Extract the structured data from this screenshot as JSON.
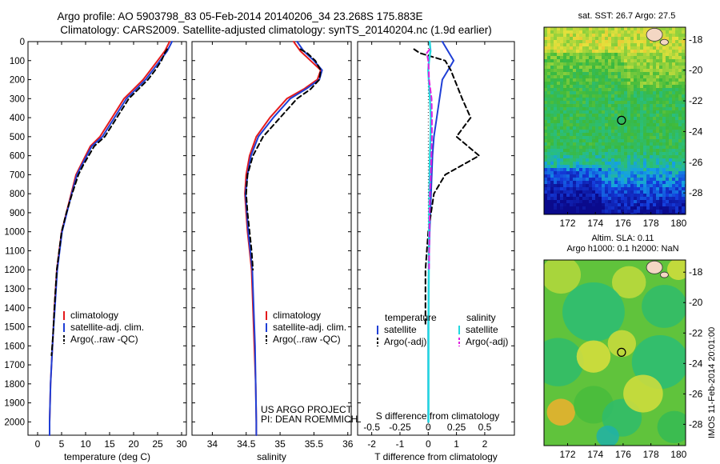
{
  "header": {
    "line1": "Argo profile: AO 5903798_83 05-Feb-2014 20140206_34 23.268S 175.883E",
    "line2": "Climatology: CARS2009. Satellite-adjusted climatology: synTS_20140204.nc (1.9d earlier)"
  },
  "side_label": "IMOS 11-Feb-2014 20:01:00",
  "colors": {
    "climatology": "#e41a1c",
    "satellite": "#1f3fd6",
    "argo": "#000000",
    "sal_satellite": "#22d8e0",
    "sal_argo": "#e020e0"
  },
  "chart_data": [
    {
      "type": "line",
      "xlabel": "temperature (deg C)",
      "xticks": [
        0,
        5,
        10,
        15,
        20,
        25,
        30
      ],
      "xlim": [
        -2,
        31
      ],
      "ylim": [
        2070,
        0
      ],
      "yticks": [
        0,
        100,
        200,
        300,
        400,
        500,
        600,
        700,
        800,
        900,
        1000,
        1100,
        1200,
        1300,
        1400,
        1500,
        1600,
        1700,
        1800,
        1900,
        2000
      ],
      "legend": [
        "climatology",
        "satellite-adj. clim.",
        "Argo(..raw -QC)"
      ],
      "series": [
        {
          "name": "climatology",
          "x": [
            27.5,
            26.5,
            25,
            23.5,
            22,
            20,
            18,
            15.5,
            13,
            11,
            9,
            8,
            7,
            6,
            5,
            4.5,
            4,
            3.5,
            3.2,
            2.9,
            2.7,
            2.6,
            2.5,
            2.5
          ],
          "y": [
            0,
            50,
            100,
            150,
            200,
            250,
            300,
            400,
            500,
            550,
            650,
            700,
            800,
            900,
            1000,
            1100,
            1200,
            1400,
            1550,
            1700,
            1800,
            1900,
            2000,
            2070
          ]
        },
        {
          "name": "satellite-adj. clim.",
          "x": [
            28,
            27,
            25.5,
            24,
            22.5,
            20.5,
            18.5,
            16,
            13.5,
            11.3,
            9.2,
            8.2,
            7.1,
            6.1,
            5.1,
            4.6,
            4.1,
            3.6,
            3.2,
            2.9,
            2.7,
            2.6,
            2.5,
            2.5
          ],
          "y": [
            0,
            50,
            100,
            150,
            200,
            250,
            300,
            400,
            500,
            550,
            650,
            700,
            800,
            900,
            1000,
            1100,
            1200,
            1400,
            1550,
            1700,
            1800,
            1900,
            2000,
            2070
          ]
        },
        {
          "name": "Argo(..raw -QC)",
          "x": [
            27,
            26.5,
            25.8,
            24.5,
            23,
            21,
            19,
            16.5,
            14,
            11.8,
            9.5,
            8.5,
            7.2,
            6,
            5,
            4.5,
            4,
            3.5,
            3.2,
            2.9
          ],
          "y": [
            40,
            60,
            100,
            150,
            200,
            250,
            300,
            400,
            500,
            550,
            650,
            700,
            800,
            900,
            1000,
            1100,
            1200,
            1400,
            1550,
            1650
          ]
        }
      ]
    },
    {
      "type": "line",
      "xlabel": "salinity",
      "xticks": [
        34,
        34.5,
        35,
        35.5,
        36
      ],
      "xlim": [
        33.7,
        36.05
      ],
      "ylim": [
        2070,
        0
      ],
      "legend": [
        "climatology",
        "satellite-adj. clim.",
        "Argo(..raw -QC)"
      ],
      "series": [
        {
          "name": "climatology",
          "x": [
            35.2,
            35.3,
            35.45,
            35.6,
            35.55,
            35.35,
            35.1,
            34.85,
            34.65,
            34.55,
            34.5,
            34.48,
            34.5,
            34.52,
            34.55,
            34.58,
            34.6,
            34.62,
            34.64,
            34.65,
            34.65
          ],
          "y": [
            0,
            50,
            100,
            150,
            200,
            250,
            300,
            400,
            500,
            600,
            700,
            800,
            900,
            1000,
            1100,
            1200,
            1400,
            1600,
            1800,
            2000,
            2070
          ]
        },
        {
          "name": "satellite-adj. clim.",
          "x": [
            35.25,
            35.35,
            35.5,
            35.62,
            35.58,
            35.38,
            35.15,
            34.9,
            34.68,
            34.57,
            34.52,
            34.49,
            34.51,
            34.53,
            34.56,
            34.59,
            34.61,
            34.63,
            34.64,
            34.65,
            34.65
          ],
          "y": [
            0,
            50,
            100,
            150,
            200,
            250,
            300,
            400,
            500,
            600,
            700,
            800,
            900,
            1000,
            1100,
            1200,
            1400,
            1600,
            1800,
            2000,
            2070
          ]
        },
        {
          "name": "Argo(..raw -QC)",
          "x": [
            35.3,
            35.4,
            35.52,
            35.6,
            35.58,
            35.45,
            35.25,
            35,
            34.75,
            34.6,
            34.52,
            34.5,
            34.52,
            34.55,
            34.58,
            34.6
          ],
          "y": [
            40,
            60,
            100,
            150,
            200,
            250,
            300,
            400,
            500,
            600,
            700,
            800,
            900,
            1000,
            1100,
            1200
          ]
        }
      ]
    },
    {
      "type": "line",
      "xlabel": "T difference from climatology",
      "xlabel_top": "S difference from climatology",
      "xticks": [
        -2,
        -1,
        0,
        1,
        2
      ],
      "xticks_top": [
        "-0.5",
        "-0.25",
        "0",
        "0.25",
        "0.5"
      ],
      "xlim": [
        -2.5,
        3.05
      ],
      "ylim": [
        2070,
        0
      ],
      "legend_left_title": "temperature",
      "legend_right_title": "salinity",
      "legend_left": [
        "satellite",
        "Argo(-adj)"
      ],
      "legend_right": [
        "satellite",
        "Argo(-adj)"
      ],
      "series": [
        {
          "name": "satellite",
          "group": "temperature",
          "x": [
            0.5,
            0.7,
            0.9,
            0.7,
            0.5,
            0.4,
            0.3,
            0.2,
            0.15,
            0.1,
            0.05,
            0.02,
            0,
            0
          ],
          "y": [
            0,
            50,
            100,
            150,
            200,
            300,
            400,
            500,
            600,
            800,
            1000,
            1200,
            1500,
            2000
          ]
        },
        {
          "name": "Argo(-adj)",
          "group": "temperature",
          "x": [
            -0.5,
            -0.3,
            0.6,
            0.8,
            1.2,
            1.5,
            1.0,
            1.8,
            1.2,
            0.6,
            0.2,
            0,
            -0.1,
            -0.1
          ],
          "y": [
            40,
            60,
            100,
            150,
            300,
            400,
            500,
            600,
            650,
            700,
            800,
            1000,
            1200,
            1500
          ]
        },
        {
          "name": "satellite",
          "group": "salinity",
          "x": [
            0.05,
            0.08,
            0.03,
            0,
            0.02,
            0.06,
            0.09,
            0.08,
            0.06,
            0.05,
            0.04,
            0.03,
            0.02,
            0.01,
            0.01
          ],
          "y": [
            0,
            50,
            100,
            150,
            200,
            300,
            400,
            500,
            600,
            700,
            800,
            1000,
            1200,
            1500,
            2000
          ]
        },
        {
          "name": "Argo(-adj)",
          "group": "salinity",
          "x": [
            0.05,
            -0.05,
            0,
            0.02,
            0.03,
            0.12,
            0.13,
            0.13,
            0.11,
            0.09,
            0.06,
            0.04,
            0.03
          ],
          "y": [
            40,
            60,
            100,
            150,
            200,
            300,
            400,
            500,
            600,
            700,
            800,
            1000,
            1200
          ]
        }
      ],
      "annotation": [
        "US ARGO PROJECT",
        "PI: DEAN ROEMMICH"
      ]
    },
    {
      "type": "heatmap",
      "title": "sat. SST: 26.7 Argo: 27.5",
      "xticks": [
        "172",
        "174",
        "176",
        "178",
        "180"
      ],
      "yticks": [
        "-18",
        "-20",
        "-22",
        "-24",
        "-26",
        "-28"
      ],
      "marker": {
        "lon": 175.883,
        "lat": -23.268
      }
    },
    {
      "type": "heatmap",
      "title": [
        "Altim. SLA: 0.11",
        "Argo h1000: 0.1 h2000: NaN"
      ],
      "xticks": [
        "172",
        "174",
        "176",
        "178",
        "180"
      ],
      "yticks": [
        "-18",
        "-20",
        "-22",
        "-24",
        "-26",
        "-28"
      ],
      "marker": {
        "lon": 175.883,
        "lat": -23.268
      }
    }
  ]
}
